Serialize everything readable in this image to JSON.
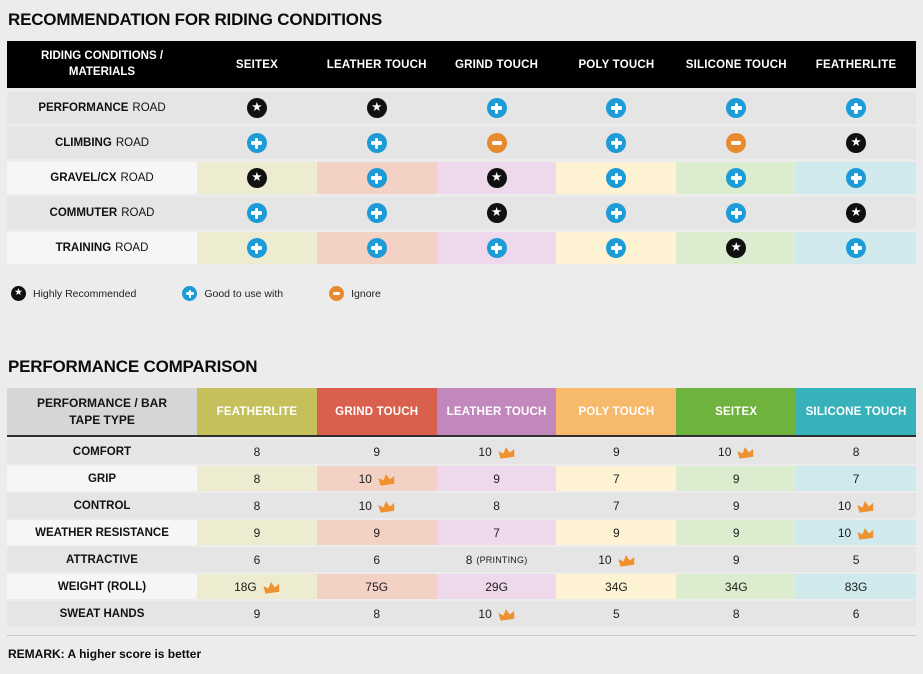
{
  "colors": {
    "page_background": "#ececec",
    "table1_header_bg": "#000000",
    "row_plain": "#e5e5e5",
    "row_label_light": "#f6f6f6",
    "column_tints": [
      "#edecd0",
      "#f4d1c5",
      "#eed9ec",
      "#fdf3d3",
      "#dcedcf",
      "#cfe9ec"
    ],
    "star_icon": "#101010",
    "plus_icon": "#1d9bd7",
    "minus_icon": "#e78a2e",
    "crown_icon": "#f0912f"
  },
  "section1": {
    "title": "RECOMMENDATION FOR RIDING CONDITIONS",
    "table": {
      "header_label": "RIDING CONDITIONS / MATERIALS",
      "columns": [
        "SEITEX",
        "LEATHER TOUCH",
        "GRIND TOUCH",
        "POLY TOUCH",
        "SILICONE TOUCH",
        "FEATHERLITE"
      ],
      "rows": [
        {
          "label_bold": "PERFORMANCE",
          "label_rest": "ROAD",
          "tinted": false,
          "cells": [
            "star",
            "star",
            "plus",
            "plus",
            "plus",
            "plus"
          ]
        },
        {
          "label_bold": "CLIMBING",
          "label_rest": "ROAD",
          "tinted": false,
          "cells": [
            "plus",
            "plus",
            "minus",
            "plus",
            "minus",
            "star"
          ]
        },
        {
          "label_bold": "GRAVEL/CX",
          "label_rest": "ROAD",
          "tinted": true,
          "cells": [
            "star",
            "plus",
            "star",
            "plus",
            "plus",
            "plus"
          ]
        },
        {
          "label_bold": "COMMUTER",
          "label_rest": "ROAD",
          "tinted": false,
          "cells": [
            "plus",
            "plus",
            "star",
            "plus",
            "plus",
            "star"
          ]
        },
        {
          "label_bold": "TRAINING",
          "label_rest": "ROAD",
          "tinted": true,
          "cells": [
            "plus",
            "plus",
            "plus",
            "plus",
            "star",
            "plus"
          ]
        }
      ]
    },
    "legend": [
      {
        "icon": "star",
        "label": "Highly Recommended"
      },
      {
        "icon": "plus",
        "label": "Good to use with"
      },
      {
        "icon": "minus",
        "label": "Ignore"
      }
    ]
  },
  "section2": {
    "title": "PERFORMANCE COMPARISON",
    "table": {
      "header_label": "PERFORMANCE / BAR TAPE TYPE",
      "columns": [
        {
          "label": "FEATHERLITE",
          "color": "#c5c05c"
        },
        {
          "label": "GRIND TOUCH",
          "color": "#d8604d"
        },
        {
          "label": "LEATHER TOUCH",
          "color": "#c287bd"
        },
        {
          "label": "POLY TOUCH",
          "color": "#f7b96b"
        },
        {
          "label": "SEITEX",
          "color": "#6db33e"
        },
        {
          "label": "SILICONE TOUCH",
          "color": "#38b2ba"
        }
      ],
      "rows": [
        {
          "label": "COMFORT",
          "tinted": false,
          "cells": [
            {
              "value": "8"
            },
            {
              "value": "9"
            },
            {
              "value": "10",
              "crown": true
            },
            {
              "value": "9"
            },
            {
              "value": "10",
              "crown": true
            },
            {
              "value": "8"
            }
          ]
        },
        {
          "label": "GRIP",
          "tinted": true,
          "cells": [
            {
              "value": "8"
            },
            {
              "value": "10",
              "crown": true
            },
            {
              "value": "9"
            },
            {
              "value": "7"
            },
            {
              "value": "9"
            },
            {
              "value": "7"
            }
          ]
        },
        {
          "label": "CONTROL",
          "tinted": false,
          "cells": [
            {
              "value": "8"
            },
            {
              "value": "10",
              "crown": true
            },
            {
              "value": "8"
            },
            {
              "value": "7"
            },
            {
              "value": "9"
            },
            {
              "value": "10",
              "crown": true
            }
          ]
        },
        {
          "label": "WEATHER RESISTANCE",
          "tinted": true,
          "cells": [
            {
              "value": "9"
            },
            {
              "value": "9"
            },
            {
              "value": "7"
            },
            {
              "value": "9"
            },
            {
              "value": "9"
            },
            {
              "value": "10",
              "crown": true
            }
          ]
        },
        {
          "label": "ATTRACTIVE",
          "tinted": false,
          "cells": [
            {
              "value": "6"
            },
            {
              "value": "6"
            },
            {
              "value": "8",
              "suffix": "(PRINTING)"
            },
            {
              "value": "10",
              "crown": true
            },
            {
              "value": "9"
            },
            {
              "value": "5"
            }
          ]
        },
        {
          "label": "WEIGHT (ROLL)",
          "tinted": true,
          "cells": [
            {
              "value": "18G",
              "crown": true
            },
            {
              "value": "75G"
            },
            {
              "value": "29G"
            },
            {
              "value": "34G"
            },
            {
              "value": "34G"
            },
            {
              "value": "83G"
            }
          ]
        },
        {
          "label": "SWEAT HANDS",
          "tinted": false,
          "cells": [
            {
              "value": "9"
            },
            {
              "value": "8"
            },
            {
              "value": "10",
              "crown": true
            },
            {
              "value": "5"
            },
            {
              "value": "8"
            },
            {
              "value": "6"
            }
          ]
        }
      ]
    },
    "remark": "REMARK: A higher score is better"
  },
  "chart_data": [
    {
      "type": "table",
      "title": "RECOMMENDATION FOR RIDING CONDITIONS",
      "row_header": "RIDING CONDITIONS / MATERIALS",
      "columns": [
        "SEITEX",
        "LEATHER TOUCH",
        "GRIND TOUCH",
        "POLY TOUCH",
        "SILICONE TOUCH",
        "FEATHERLITE"
      ],
      "rows": [
        {
          "label": "PERFORMANCE ROAD",
          "values": [
            "Highly Recommended",
            "Highly Recommended",
            "Good to use with",
            "Good to use with",
            "Good to use with",
            "Good to use with"
          ]
        },
        {
          "label": "CLIMBING ROAD",
          "values": [
            "Good to use with",
            "Good to use with",
            "Ignore",
            "Good to use with",
            "Ignore",
            "Highly Recommended"
          ]
        },
        {
          "label": "GRAVEL/CX ROAD",
          "values": [
            "Highly Recommended",
            "Good to use with",
            "Highly Recommended",
            "Good to use with",
            "Good to use with",
            "Good to use with"
          ]
        },
        {
          "label": "COMMUTER ROAD",
          "values": [
            "Good to use with",
            "Good to use with",
            "Highly Recommended",
            "Good to use with",
            "Good to use with",
            "Highly Recommended"
          ]
        },
        {
          "label": "TRAINING ROAD",
          "values": [
            "Good to use with",
            "Good to use with",
            "Good to use with",
            "Good to use with",
            "Highly Recommended",
            "Good to use with"
          ]
        }
      ],
      "legend": [
        "Highly Recommended",
        "Good to use with",
        "Ignore"
      ]
    },
    {
      "type": "table",
      "title": "PERFORMANCE COMPARISON",
      "row_header": "PERFORMANCE / BAR TAPE TYPE",
      "columns": [
        "FEATHERLITE",
        "GRIND TOUCH",
        "LEATHER TOUCH",
        "POLY TOUCH",
        "SEITEX",
        "SILICONE TOUCH"
      ],
      "rows": [
        {
          "label": "COMFORT",
          "values": [
            "8",
            "9",
            "10 (best)",
            "9",
            "10 (best)",
            "8"
          ]
        },
        {
          "label": "GRIP",
          "values": [
            "8",
            "10 (best)",
            "9",
            "7",
            "9",
            "7"
          ]
        },
        {
          "label": "CONTROL",
          "values": [
            "8",
            "10 (best)",
            "8",
            "7",
            "9",
            "10 (best)"
          ]
        },
        {
          "label": "WEATHER RESISTANCE",
          "values": [
            "9",
            "9",
            "7",
            "9",
            "9",
            "10 (best)"
          ]
        },
        {
          "label": "ATTRACTIVE",
          "values": [
            "6",
            "6",
            "8 (PRINTING)",
            "10 (best)",
            "9",
            "5"
          ]
        },
        {
          "label": "WEIGHT (ROLL)",
          "values": [
            "18G (best)",
            "75G",
            "29G",
            "34G",
            "34G",
            "83G"
          ]
        },
        {
          "label": "SWEAT HANDS",
          "values": [
            "9",
            "8",
            "10 (best)",
            "5",
            "8",
            "6"
          ]
        }
      ],
      "remark": "REMARK: A higher score is better"
    }
  ]
}
